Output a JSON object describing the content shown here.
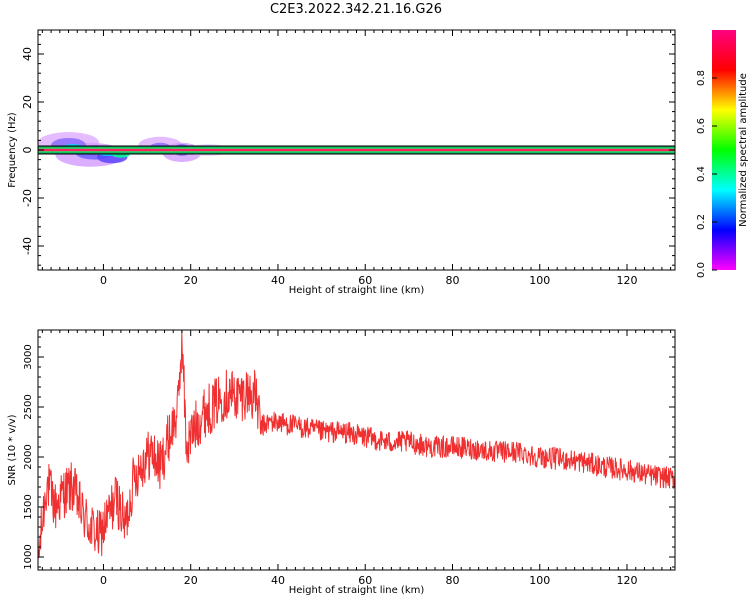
{
  "figure": {
    "title": "C2E3.2022.342.21.16.G26"
  },
  "chart_data": [
    {
      "type": "heatmap",
      "title": "",
      "xlabel": "Height of straight line (km)",
      "ylabel": "Frequency (Hz)",
      "xlim": [
        -15,
        131
      ],
      "ylim": [
        -50,
        50
      ],
      "xticks": [
        0,
        20,
        40,
        60,
        80,
        100,
        120
      ],
      "yticks": [
        -40,
        -20,
        0,
        20,
        40
      ],
      "colorbar": {
        "label": "Normalized spectral amplitude",
        "range": [
          0,
          1
        ],
        "ticks": [
          0.0,
          0.2,
          0.4,
          0.6,
          0.8
        ]
      },
      "ridge_frequency": 0,
      "background_color": "#ffffff",
      "note_colors": [
        "#ff00ff",
        "#0000ff",
        "#00ffff",
        "#00ff00",
        "#ffff00",
        "#ff0000",
        "#ff0080"
      ]
    },
    {
      "type": "line",
      "title": "",
      "xlabel": "Height of straight line (km)",
      "ylabel": "SNR (10 * v/v)",
      "xlim": [
        -15,
        131
      ],
      "ylim": [
        870,
        3270
      ],
      "xticks": [
        0,
        20,
        40,
        60,
        80,
        100,
        120
      ],
      "yticks": [
        1000,
        1500,
        2000,
        2500,
        3000
      ],
      "color": "#f03030",
      "x": [
        -15,
        -13,
        -11,
        -9,
        -7,
        -5,
        -3,
        -1,
        1,
        3,
        5,
        7,
        9,
        11,
        13,
        15,
        17,
        18,
        19,
        21,
        23,
        25,
        27,
        29,
        31,
        33,
        35,
        36,
        38,
        40,
        45,
        50,
        55,
        60,
        65,
        70,
        75,
        80,
        85,
        90,
        95,
        100,
        105,
        110,
        115,
        120,
        125,
        131
      ],
      "y": [
        950,
        1750,
        1500,
        1650,
        1700,
        1450,
        1300,
        1200,
        1400,
        1600,
        1300,
        1800,
        1950,
        2050,
        1900,
        2200,
        2450,
        3200,
        2100,
        2300,
        2450,
        2500,
        2600,
        2650,
        2600,
        2650,
        2600,
        2300,
        2350,
        2350,
        2300,
        2250,
        2250,
        2200,
        2150,
        2150,
        2100,
        2100,
        2080,
        2050,
        2050,
        2000,
        1980,
        1950,
        1900,
        1870,
        1820,
        1780
      ]
    }
  ]
}
